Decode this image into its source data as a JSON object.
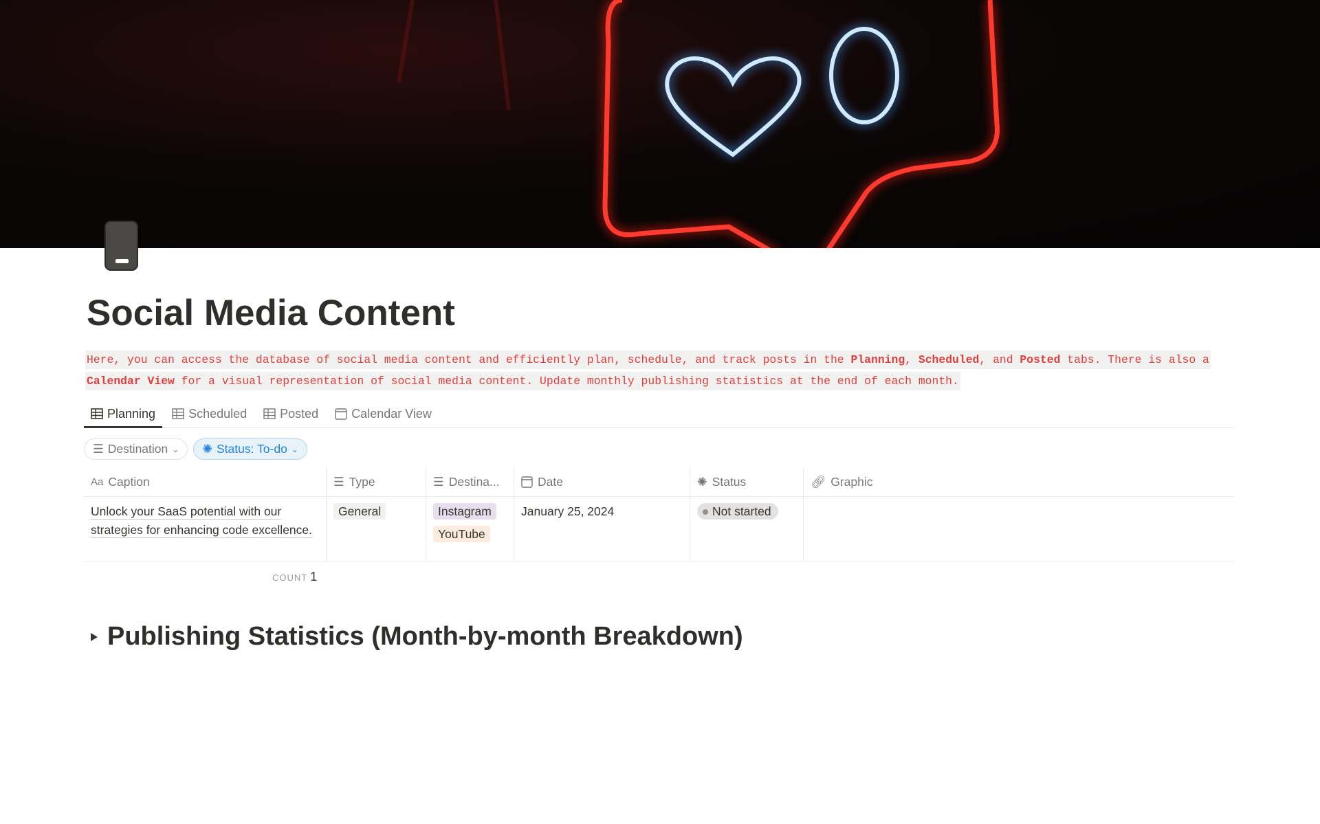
{
  "page": {
    "title": "Social Media Content",
    "icon": "phone-icon"
  },
  "description": {
    "t1": "Here, you can access the database of social media content and efficiently plan, schedule, and track posts in the ",
    "b1": "Planning",
    "t2": ", ",
    "b2": "Scheduled",
    "t3": ", and ",
    "b3": "Posted",
    "t4": " tabs. There is also a ",
    "b4": "Calendar View",
    "t5": " for a visual representation of social media content. Update monthly publishing statistics at the end of each month."
  },
  "tabs": [
    {
      "label": "Planning",
      "icon": "table-icon",
      "active": true
    },
    {
      "label": "Scheduled",
      "icon": "table-icon"
    },
    {
      "label": "Posted",
      "icon": "table-icon"
    },
    {
      "label": "Calendar View",
      "icon": "calendar-icon"
    }
  ],
  "filters": [
    {
      "label": "Destination"
    },
    {
      "label": "Status: To-do"
    }
  ],
  "table": {
    "columns": [
      {
        "label": "Caption",
        "icon": "Aa"
      },
      {
        "label": "Type"
      },
      {
        "label": "Destina..."
      },
      {
        "label": "Date"
      },
      {
        "label": "Status"
      },
      {
        "label": "Graphic"
      }
    ],
    "rows": [
      {
        "caption": "Unlock your SaaS potential with our strategies for enhancing code excellence.",
        "type": "General",
        "destinations": [
          "Instagram",
          "YouTube"
        ],
        "date": "January 25, 2024",
        "status": "Not started"
      }
    ]
  },
  "count": {
    "label": "COUNT",
    "value": "1"
  },
  "section": {
    "title": "Publishing Statistics (Month-by-month Breakdown)"
  },
  "colors": {
    "accent": "#e03e3e",
    "blue": "#2383e2",
    "instagram": "#e8deee",
    "youtube": "#fbecdd",
    "general": "#f1f1ef",
    "status": "#e3e2e0"
  }
}
